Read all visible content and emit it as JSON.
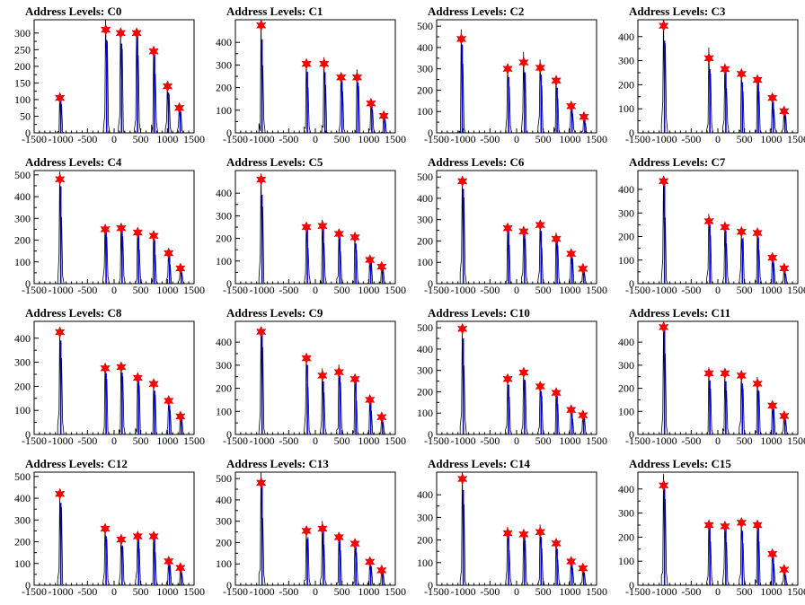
{
  "chart_data": [
    {
      "type": "bar",
      "title": "Address Levels: C0",
      "xlim": [
        -1500,
        1500
      ],
      "ylim": [
        0,
        340
      ],
      "yticks": [
        0,
        50,
        100,
        150,
        200,
        250,
        300
      ],
      "xticks": [
        -1500,
        -1000,
        -500,
        0,
        500,
        1000,
        1500
      ],
      "peaks": [
        {
          "x": -1000,
          "y": 105
        },
        {
          "x": -140,
          "y": 310
        },
        {
          "x": 140,
          "y": 300
        },
        {
          "x": 440,
          "y": 300
        },
        {
          "x": 760,
          "y": 245
        },
        {
          "x": 1020,
          "y": 140
        },
        {
          "x": 1240,
          "y": 75
        }
      ]
    },
    {
      "type": "bar",
      "title": "Address Levels: C1",
      "xlim": [
        -1500,
        1500
      ],
      "ylim": [
        0,
        500
      ],
      "yticks": [
        0,
        100,
        200,
        300,
        400
      ],
      "xticks": [
        -1500,
        -1000,
        -500,
        0,
        500,
        1000,
        1500
      ],
      "peaks": [
        {
          "x": -1000,
          "y": 475
        },
        {
          "x": -150,
          "y": 305
        },
        {
          "x": 180,
          "y": 305
        },
        {
          "x": 500,
          "y": 245
        },
        {
          "x": 800,
          "y": 245
        },
        {
          "x": 1060,
          "y": 130
        },
        {
          "x": 1300,
          "y": 75
        }
      ]
    },
    {
      "type": "bar",
      "title": "Address Levels: C2",
      "xlim": [
        -1500,
        1500
      ],
      "ylim": [
        0,
        530
      ],
      "yticks": [
        0,
        100,
        200,
        300,
        400,
        500
      ],
      "xticks": [
        -1500,
        -1000,
        -500,
        0,
        500,
        1000,
        1500
      ],
      "peaks": [
        {
          "x": -1020,
          "y": 440
        },
        {
          "x": -150,
          "y": 300
        },
        {
          "x": 150,
          "y": 330
        },
        {
          "x": 460,
          "y": 305
        },
        {
          "x": 760,
          "y": 245
        },
        {
          "x": 1040,
          "y": 125
        },
        {
          "x": 1280,
          "y": 75
        }
      ]
    },
    {
      "type": "bar",
      "title": "Address Levels: C3",
      "xlim": [
        -1500,
        1500
      ],
      "ylim": [
        0,
        470
      ],
      "yticks": [
        0,
        100,
        200,
        300,
        400
      ],
      "xticks": [
        -1500,
        -1000,
        -500,
        0,
        500,
        1000,
        1500
      ],
      "peaks": [
        {
          "x": -1000,
          "y": 445
        },
        {
          "x": -150,
          "y": 310
        },
        {
          "x": 150,
          "y": 265
        },
        {
          "x": 460,
          "y": 245
        },
        {
          "x": 760,
          "y": 220
        },
        {
          "x": 1040,
          "y": 145
        },
        {
          "x": 1260,
          "y": 90
        }
      ]
    },
    {
      "type": "bar",
      "title": "Address Levels: C4",
      "xlim": [
        -1500,
        1500
      ],
      "ylim": [
        0,
        520
      ],
      "yticks": [
        0,
        100,
        200,
        300,
        400,
        500
      ],
      "xticks": [
        -1500,
        -1000,
        -500,
        0,
        500,
        1000,
        1500
      ],
      "peaks": [
        {
          "x": -1000,
          "y": 480
        },
        {
          "x": -150,
          "y": 250
        },
        {
          "x": 150,
          "y": 255
        },
        {
          "x": 460,
          "y": 235
        },
        {
          "x": 760,
          "y": 220
        },
        {
          "x": 1040,
          "y": 140
        },
        {
          "x": 1260,
          "y": 70
        }
      ]
    },
    {
      "type": "bar",
      "title": "Address Levels: C5",
      "xlim": [
        -1500,
        1500
      ],
      "ylim": [
        0,
        500
      ],
      "yticks": [
        0,
        100,
        200,
        300,
        400
      ],
      "xticks": [
        -1500,
        -1000,
        -500,
        0,
        500,
        1000,
        1500
      ],
      "peaks": [
        {
          "x": -1000,
          "y": 460
        },
        {
          "x": -150,
          "y": 250
        },
        {
          "x": 150,
          "y": 255
        },
        {
          "x": 460,
          "y": 220
        },
        {
          "x": 760,
          "y": 205
        },
        {
          "x": 1040,
          "y": 105
        },
        {
          "x": 1260,
          "y": 75
        }
      ]
    },
    {
      "type": "bar",
      "title": "Address Levels: C6",
      "xlim": [
        -1500,
        1500
      ],
      "ylim": [
        0,
        530
      ],
      "yticks": [
        0,
        100,
        200,
        300,
        400,
        500
      ],
      "xticks": [
        -1500,
        -1000,
        -500,
        0,
        500,
        1000,
        1500
      ],
      "peaks": [
        {
          "x": -1000,
          "y": 480
        },
        {
          "x": -150,
          "y": 260
        },
        {
          "x": 150,
          "y": 245
        },
        {
          "x": 460,
          "y": 275
        },
        {
          "x": 760,
          "y": 210
        },
        {
          "x": 1040,
          "y": 140
        },
        {
          "x": 1260,
          "y": 70
        }
      ]
    },
    {
      "type": "bar",
      "title": "Address Levels: C7",
      "xlim": [
        -1500,
        1500
      ],
      "ylim": [
        0,
        480
      ],
      "yticks": [
        0,
        100,
        200,
        300,
        400
      ],
      "xticks": [
        -1500,
        -1000,
        -500,
        0,
        500,
        1000,
        1500
      ],
      "peaks": [
        {
          "x": -1000,
          "y": 435
        },
        {
          "x": -150,
          "y": 265
        },
        {
          "x": 150,
          "y": 240
        },
        {
          "x": 460,
          "y": 220
        },
        {
          "x": 760,
          "y": 215
        },
        {
          "x": 1040,
          "y": 110
        },
        {
          "x": 1260,
          "y": 65
        }
      ]
    },
    {
      "type": "bar",
      "title": "Address Levels: C8",
      "xlim": [
        -1500,
        1500
      ],
      "ylim": [
        0,
        470
      ],
      "yticks": [
        0,
        100,
        200,
        300,
        400
      ],
      "xticks": [
        -1500,
        -1000,
        -500,
        0,
        500,
        1000,
        1500
      ],
      "peaks": [
        {
          "x": -1000,
          "y": 425
        },
        {
          "x": -150,
          "y": 275
        },
        {
          "x": 150,
          "y": 280
        },
        {
          "x": 460,
          "y": 235
        },
        {
          "x": 760,
          "y": 210
        },
        {
          "x": 1040,
          "y": 140
        },
        {
          "x": 1260,
          "y": 75
        }
      ]
    },
    {
      "type": "bar",
      "title": "Address Levels: C9",
      "xlim": [
        -1500,
        1500
      ],
      "ylim": [
        0,
        490
      ],
      "yticks": [
        0,
        100,
        200,
        300,
        400
      ],
      "xticks": [
        -1500,
        -1000,
        -500,
        0,
        500,
        1000,
        1500
      ],
      "peaks": [
        {
          "x": -1000,
          "y": 445
        },
        {
          "x": -150,
          "y": 330
        },
        {
          "x": 150,
          "y": 255
        },
        {
          "x": 460,
          "y": 270
        },
        {
          "x": 760,
          "y": 240
        },
        {
          "x": 1040,
          "y": 150
        },
        {
          "x": 1260,
          "y": 75
        }
      ]
    },
    {
      "type": "bar",
      "title": "Address Levels: C10",
      "xlim": [
        -1500,
        1500
      ],
      "ylim": [
        0,
        530
      ],
      "yticks": [
        0,
        100,
        200,
        300,
        400,
        500
      ],
      "xticks": [
        -1500,
        -1000,
        -500,
        0,
        500,
        1000,
        1500
      ],
      "peaks": [
        {
          "x": -1000,
          "y": 495
        },
        {
          "x": -150,
          "y": 260
        },
        {
          "x": 150,
          "y": 290
        },
        {
          "x": 460,
          "y": 225
        },
        {
          "x": 760,
          "y": 195
        },
        {
          "x": 1040,
          "y": 115
        },
        {
          "x": 1260,
          "y": 90
        }
      ]
    },
    {
      "type": "bar",
      "title": "Address Levels: C11",
      "xlim": [
        -1500,
        1500
      ],
      "ylim": [
        0,
        490
      ],
      "yticks": [
        0,
        100,
        200,
        300,
        400
      ],
      "xticks": [
        -1500,
        -1000,
        -500,
        0,
        500,
        1000,
        1500
      ],
      "peaks": [
        {
          "x": -1000,
          "y": 465
        },
        {
          "x": -150,
          "y": 265
        },
        {
          "x": 150,
          "y": 265
        },
        {
          "x": 460,
          "y": 255
        },
        {
          "x": 760,
          "y": 220
        },
        {
          "x": 1040,
          "y": 125
        },
        {
          "x": 1260,
          "y": 80
        }
      ]
    },
    {
      "type": "bar",
      "title": "Address Levels: C12",
      "xlim": [
        -1500,
        1500
      ],
      "ylim": [
        0,
        520
      ],
      "yticks": [
        0,
        100,
        200,
        300,
        400,
        500
      ],
      "xticks": [
        -1500,
        -1000,
        -500,
        0,
        500,
        1000,
        1500
      ],
      "peaks": [
        {
          "x": -1000,
          "y": 420
        },
        {
          "x": -150,
          "y": 260
        },
        {
          "x": 150,
          "y": 210
        },
        {
          "x": 460,
          "y": 225
        },
        {
          "x": 760,
          "y": 225
        },
        {
          "x": 1040,
          "y": 110
        },
        {
          "x": 1260,
          "y": 80
        }
      ]
    },
    {
      "type": "bar",
      "title": "Address Levels: C13",
      "xlim": [
        -1500,
        1500
      ],
      "ylim": [
        0,
        530
      ],
      "yticks": [
        0,
        100,
        200,
        300,
        400,
        500
      ],
      "xticks": [
        -1500,
        -1000,
        -500,
        0,
        500,
        1000,
        1500
      ],
      "peaks": [
        {
          "x": -1000,
          "y": 480
        },
        {
          "x": -150,
          "y": 255
        },
        {
          "x": 150,
          "y": 265
        },
        {
          "x": 460,
          "y": 225
        },
        {
          "x": 760,
          "y": 195
        },
        {
          "x": 1040,
          "y": 110
        },
        {
          "x": 1260,
          "y": 70
        }
      ]
    },
    {
      "type": "bar",
      "title": "Address Levels: C14",
      "xlim": [
        -1500,
        1500
      ],
      "ylim": [
        0,
        500
      ],
      "yticks": [
        0,
        100,
        200,
        300,
        400
      ],
      "xticks": [
        -1500,
        -1000,
        -500,
        0,
        500,
        1000,
        1500
      ],
      "peaks": [
        {
          "x": -1000,
          "y": 470
        },
        {
          "x": -150,
          "y": 230
        },
        {
          "x": 150,
          "y": 225
        },
        {
          "x": 460,
          "y": 235
        },
        {
          "x": 760,
          "y": 185
        },
        {
          "x": 1040,
          "y": 105
        },
        {
          "x": 1260,
          "y": 75
        }
      ]
    },
    {
      "type": "bar",
      "title": "Address Levels: C15",
      "xlim": [
        -1500,
        1500
      ],
      "ylim": [
        0,
        470
      ],
      "yticks": [
        0,
        100,
        200,
        300,
        400
      ],
      "xticks": [
        -1500,
        -1000,
        -500,
        0,
        500,
        1000,
        1500
      ],
      "peaks": [
        {
          "x": -1000,
          "y": 415
        },
        {
          "x": -150,
          "y": 250
        },
        {
          "x": 150,
          "y": 245
        },
        {
          "x": 460,
          "y": 260
        },
        {
          "x": 760,
          "y": 250
        },
        {
          "x": 1040,
          "y": 130
        },
        {
          "x": 1260,
          "y": 65
        }
      ]
    }
  ]
}
